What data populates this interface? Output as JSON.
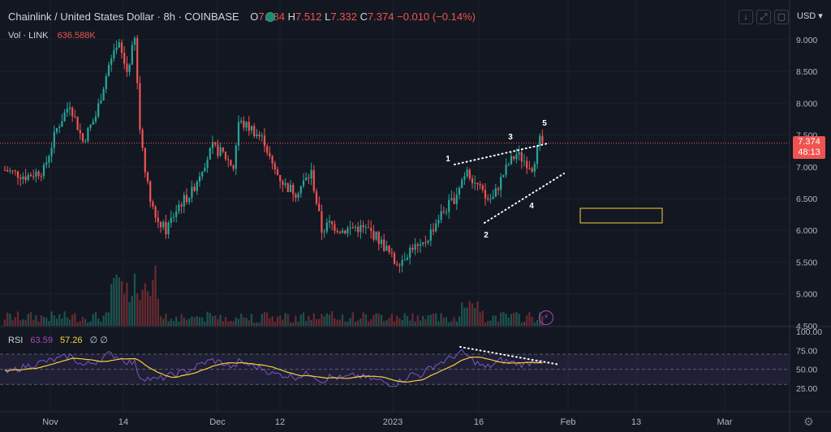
{
  "header": {
    "title": "Chainlink / United States Dollar · 8h · COINBASE",
    "o_label": "O",
    "o_value": "7.384",
    "h_label": "H",
    "h_value": "7.512",
    "l_label": "L",
    "l_value": "7.332",
    "c_label": "C",
    "c_value": "7.374",
    "change": "−0.010 (−0.14%)"
  },
  "volume": {
    "label": "Vol · LINK",
    "value": "636.588K"
  },
  "rsi": {
    "label": "RSI",
    "value": "63.59",
    "ma_value": "57.26",
    "extra": "∅ ∅"
  },
  "currency": "USD",
  "last_price": {
    "price": "7.374",
    "countdown": "48:13"
  },
  "colors": {
    "up": "#26a69a",
    "down": "#ef5350",
    "rsi": "#7e57c2",
    "rsi_ma": "#f7d13a",
    "bg": "#131722",
    "grid": "#1e222d"
  },
  "icons": [
    "arrow-down-icon",
    "expand-icon",
    "screenshot-icon",
    "gear-icon",
    "lightning-icon"
  ],
  "chart_data": {
    "type": "candlestick",
    "symbol": "LINKUSD",
    "interval": "8h",
    "ylim": [
      4.5,
      9.25
    ],
    "y_ticks": [
      "9.000",
      "8.500",
      "8.000",
      "7.500",
      "7.000",
      "6.500",
      "6.000",
      "5.500",
      "5.000",
      "4.500"
    ],
    "x_ticks": [
      "Nov",
      "14",
      "Dec",
      "12",
      "2023",
      "16",
      "Feb",
      "13",
      "Mar"
    ],
    "price_path": [
      [
        0,
        6.95
      ],
      [
        8,
        6.85
      ],
      [
        15,
        6.95
      ],
      [
        20,
        7.6
      ],
      [
        25,
        8.0
      ],
      [
        30,
        7.4
      ],
      [
        35,
        7.8
      ],
      [
        40,
        8.6
      ],
      [
        44,
        8.9
      ],
      [
        47,
        8.5
      ],
      [
        50,
        9.0
      ],
      [
        52,
        7.6
      ],
      [
        55,
        6.7
      ],
      [
        58,
        6.2
      ],
      [
        62,
        6.0
      ],
      [
        67,
        6.4
      ],
      [
        72,
        6.6
      ],
      [
        76,
        7.0
      ],
      [
        80,
        7.3
      ],
      [
        84,
        7.2
      ],
      [
        88,
        7.0
      ],
      [
        90,
        7.7
      ],
      [
        95,
        7.6
      ],
      [
        100,
        7.4
      ],
      [
        103,
        7.0
      ],
      [
        108,
        6.7
      ],
      [
        112,
        6.6
      ],
      [
        118,
        6.9
      ],
      [
        122,
        6.0
      ],
      [
        125,
        6.1
      ],
      [
        130,
        6.0
      ],
      [
        135,
        6.05
      ],
      [
        140,
        6.0
      ],
      [
        143,
        5.9
      ],
      [
        147,
        5.7
      ],
      [
        150,
        5.5
      ],
      [
        153,
        5.55
      ],
      [
        157,
        5.75
      ],
      [
        160,
        5.7
      ],
      [
        163,
        5.9
      ],
      [
        167,
        6.2
      ],
      [
        170,
        6.35
      ],
      [
        173,
        6.5
      ],
      [
        176,
        6.8
      ],
      [
        178,
        7.0
      ],
      [
        180,
        6.8
      ],
      [
        182,
        6.7
      ],
      [
        185,
        6.5
      ],
      [
        188,
        6.5
      ],
      [
        191,
        6.8
      ],
      [
        194,
        7.05
      ],
      [
        197,
        7.2
      ],
      [
        200,
        7.1
      ],
      [
        203,
        7.0
      ],
      [
        206,
        7.4
      ],
      [
        207,
        7.38
      ]
    ],
    "rsi_path": [
      [
        0,
        45
      ],
      [
        8,
        54
      ],
      [
        15,
        60
      ],
      [
        20,
        63
      ],
      [
        25,
        68
      ],
      [
        30,
        55
      ],
      [
        35,
        60
      ],
      [
        40,
        70
      ],
      [
        44,
        66
      ],
      [
        47,
        60
      ],
      [
        50,
        58
      ],
      [
        52,
        40
      ],
      [
        55,
        38
      ],
      [
        58,
        36
      ],
      [
        62,
        40
      ],
      [
        67,
        45
      ],
      [
        72,
        50
      ],
      [
        76,
        58
      ],
      [
        80,
        62
      ],
      [
        84,
        58
      ],
      [
        88,
        52
      ],
      [
        90,
        60
      ],
      [
        95,
        55
      ],
      [
        100,
        50
      ],
      [
        103,
        44
      ],
      [
        108,
        42
      ],
      [
        112,
        40
      ],
      [
        118,
        45
      ],
      [
        122,
        34
      ],
      [
        125,
        40
      ],
      [
        130,
        38
      ],
      [
        135,
        42
      ],
      [
        140,
        38
      ],
      [
        143,
        36
      ],
      [
        147,
        32
      ],
      [
        150,
        30
      ],
      [
        153,
        36
      ],
      [
        157,
        44
      ],
      [
        160,
        42
      ],
      [
        163,
        50
      ],
      [
        167,
        58
      ],
      [
        170,
        62
      ],
      [
        173,
        68
      ],
      [
        176,
        72
      ],
      [
        178,
        68
      ],
      [
        180,
        62
      ],
      [
        182,
        58
      ],
      [
        185,
        52
      ],
      [
        188,
        56
      ],
      [
        191,
        62
      ],
      [
        194,
        60
      ],
      [
        197,
        58
      ],
      [
        200,
        56
      ],
      [
        203,
        60
      ],
      [
        206,
        63.59
      ],
      [
        207,
        63.59
      ]
    ],
    "rsi_levels": [
      70,
      50,
      30
    ],
    "rsi_ticks": [
      "100.00",
      "75.00",
      "50.00",
      "25.00"
    ],
    "annotations": [
      {
        "text": "1",
        "bar": 178,
        "price": 7.1
      },
      {
        "text": "2",
        "bar": 183,
        "price": 6.0
      },
      {
        "text": "3",
        "bar": 195,
        "price": 7.45
      },
      {
        "text": "4",
        "bar": 200,
        "price": 6.55
      },
      {
        "text": "5",
        "bar": 205,
        "price": 7.7
      }
    ]
  }
}
